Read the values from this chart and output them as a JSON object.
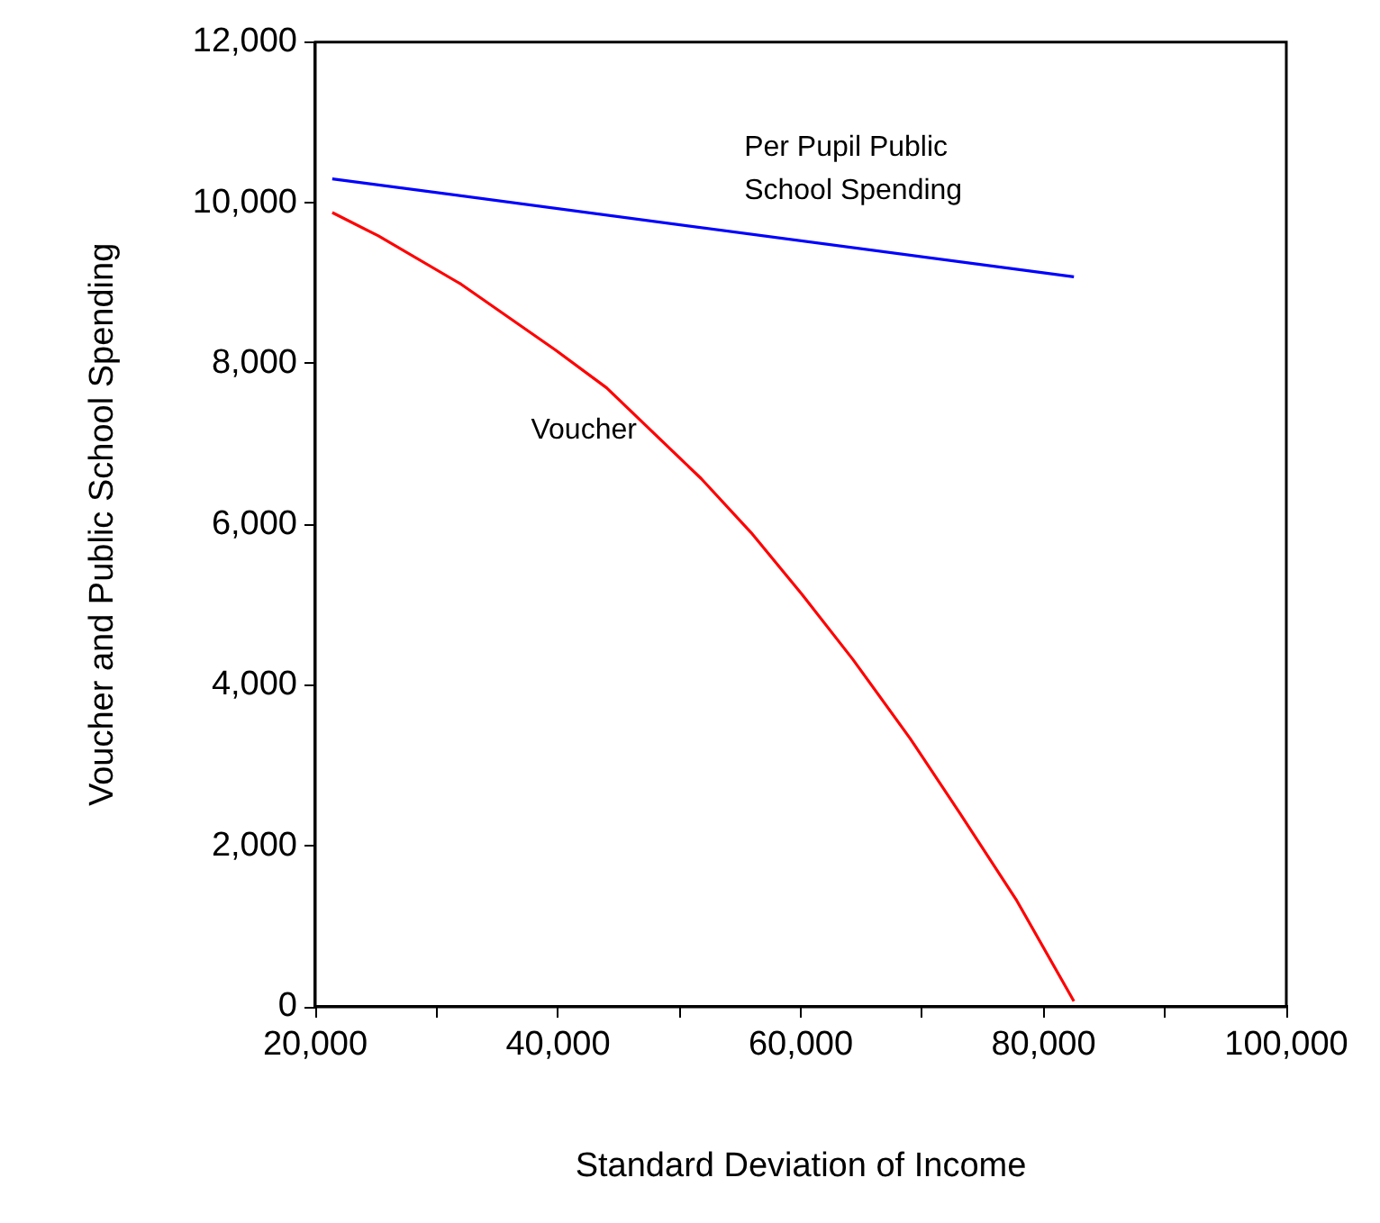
{
  "chart_data": {
    "type": "line",
    "xlabel": "Standard Deviation of Income",
    "ylabel": "Voucher and Public School Spending",
    "xlim": [
      20000,
      100000
    ],
    "ylim": [
      0,
      12000
    ],
    "xticks": [
      {
        "value": 20000,
        "label": "20,000"
      },
      {
        "value": 30000,
        "label": null
      },
      {
        "value": 40000,
        "label": "40,000"
      },
      {
        "value": 50000,
        "label": null
      },
      {
        "value": 60000,
        "label": "60,000"
      },
      {
        "value": 70000,
        "label": null
      },
      {
        "value": 80000,
        "label": "80,000"
      },
      {
        "value": 90000,
        "label": null
      },
      {
        "value": 100000,
        "label": "100,000"
      }
    ],
    "yticks": [
      0,
      {
        "value": 2000,
        "label": "2,000"
      },
      {
        "value": 4000,
        "label": "4,000"
      },
      {
        "value": 6000,
        "label": "6,000"
      },
      {
        "value": 8000,
        "label": "8,000"
      },
      {
        "value": 10000,
        "label": "10,000"
      },
      {
        "value": 12000,
        "label": "12,000"
      }
    ],
    "grid": false,
    "legend": false,
    "marker": "none",
    "line_style": "solid",
    "series": [
      {
        "name": "Per Pupil Public\nSchool Spending",
        "color": "#0000ff",
        "x": [
          21400,
          82500
        ],
        "values": [
          10300,
          9080
        ]
      },
      {
        "name": "Voucher",
        "color": "#ff0000",
        "x": [
          21400,
          25200,
          32000,
          39800,
          44000,
          51800,
          55900,
          60100,
          64300,
          69000,
          73100,
          77800,
          82500
        ],
        "values": [
          9880,
          9590,
          8990,
          8170,
          7700,
          6570,
          5900,
          5130,
          4320,
          3340,
          2410,
          1320,
          70
        ]
      }
    ]
  }
}
